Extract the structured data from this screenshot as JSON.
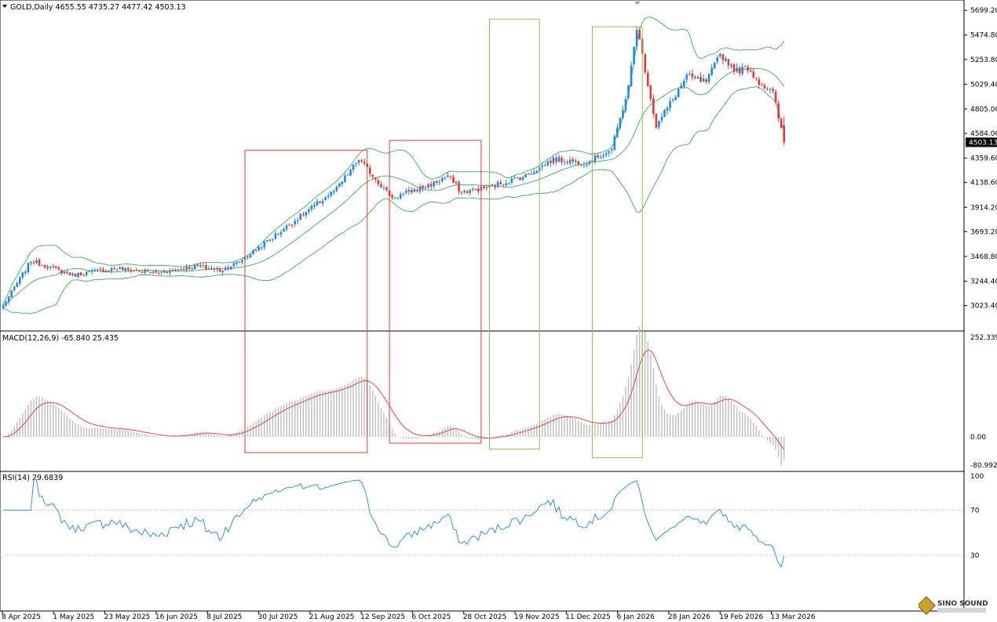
{
  "colors": {
    "bull": "#1e88e5",
    "bear": "#e53935",
    "bands": "#2e9e47",
    "macd_hist": "#bdbdbd",
    "macd_signal": "#e53935",
    "rsi_line": "#1e88e5",
    "box_red": "#e53935",
    "box_green": "#8bc34a",
    "grid": "#000000"
  },
  "header": {
    "symbol_line": "GOLD,Daily  4655.55 4735.27 4477.42 4503.13"
  },
  "icons": {
    "menu": "triangle-down-icon",
    "logo": "sino-sound-logo"
  },
  "logo": {
    "text": "SINO SOUND"
  },
  "chart_data": [
    {
      "type": "candlestick",
      "title": "GOLD,Daily",
      "ohlc_last": {
        "open": 4655.55,
        "high": 4735.27,
        "low": 4477.42,
        "close": 4503.13
      },
      "current_price_label": "4503.13",
      "ylim": [
        2800,
        5750
      ],
      "y_ticks": [
        "5699.20",
        "5474.80",
        "5253.80",
        "5029.40",
        "4805.00",
        "4584.00",
        "4359.60",
        "4138.60",
        "3914.20",
        "3693.20",
        "3468.80",
        "3244.40",
        "3023.40"
      ],
      "overlay": "Bollinger Bands",
      "legend": "top-left",
      "grid": false
    },
    {
      "type": "macd",
      "title": "MACD(12,26,9) -65.840 25.435",
      "params": [
        12,
        26,
        9
      ],
      "value": -65.84,
      "signal": 25.435,
      "ylim": [
        -80.992,
        252.339
      ],
      "y_ticks": [
        "252.339",
        "0.00",
        "-80.992"
      ]
    },
    {
      "type": "line",
      "title": "RSI(14) 29.6839",
      "value": 29.6839,
      "ylim": [
        0,
        100
      ],
      "y_ticks": [
        "100",
        "70",
        "30"
      ],
      "levels": [
        70,
        30
      ]
    }
  ],
  "x_axis": {
    "labels": [
      "8 Apr 2025",
      "1 May 2025",
      "23 May 2025",
      "16 Jun 2025",
      "8 Jul 2025",
      "30 Jul 2025",
      "21 Aug 2025",
      "12 Sep 2025",
      "6 Oct 2025",
      "28 Oct 2025",
      "19 Nov 2025",
      "11 Dec 2025",
      "6 Jan 2026",
      "28 Jan 2026",
      "19 Feb 2026",
      "13 Mar 2026"
    ]
  },
  "price_path": {
    "t": [
      0,
      10,
      25,
      40,
      55,
      70,
      78,
      85,
      100,
      120,
      128,
      140,
      155,
      160,
      165,
      175,
      188,
      198,
      210,
      219,
      225,
      228,
      235,
      246,
      253,
      258,
      264,
      268,
      272,
      277,
      281
    ],
    "p": [
      3020,
      3430,
      3300,
      3360,
      3320,
      3380,
      3340,
      3420,
      3700,
      4080,
      4350,
      4000,
      4130,
      4200,
      4050,
      4100,
      4200,
      4350,
      4320,
      4440,
      5000,
      5550,
      4650,
      5100,
      5050,
      5300,
      5150,
      5180,
      5050,
      4950,
      4503.13
    ]
  },
  "annotations": {
    "boxes": [
      {
        "color": "box_red",
        "t_start": 87,
        "t_end": 131,
        "y_top_price": 4430,
        "y_bottom_macd": -45
      },
      {
        "color": "box_red",
        "t_start": 139,
        "t_end": 172,
        "y_top_price": 4520,
        "y_bottom_macd": -18
      },
      {
        "color": "box_green",
        "t_start": 175,
        "t_end": 193,
        "y_top_price": 5620,
        "y_bottom_macd": -35
      },
      {
        "color": "box_green",
        "t_start": 212,
        "t_end": 230,
        "y_top_price": 5550,
        "y_bottom_macd": -60
      }
    ]
  }
}
